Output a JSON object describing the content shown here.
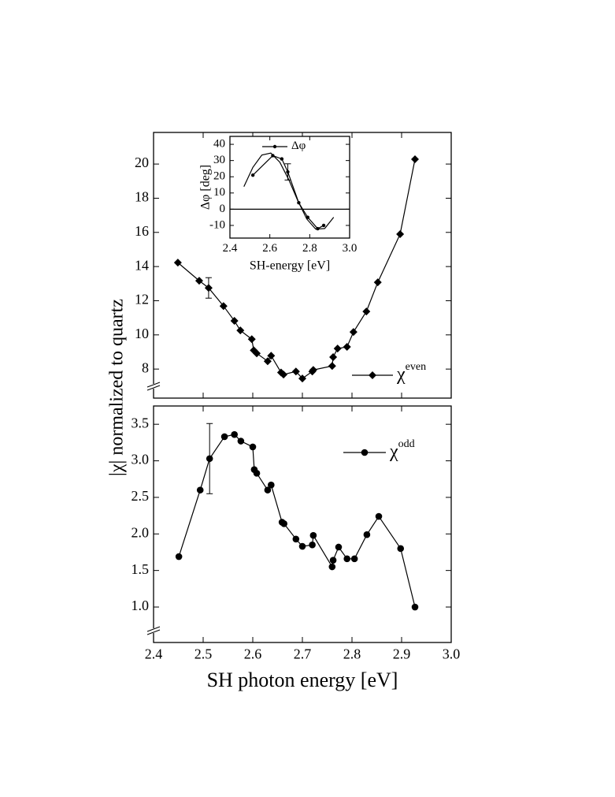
{
  "chart_data": [
    {
      "type": "line",
      "xlim": [
        2.4,
        3.0
      ],
      "ylim": [
        6.3,
        21.85
      ],
      "yticks": [
        8,
        10,
        12,
        14,
        16,
        18,
        20
      ],
      "legend": "lower right",
      "series": [
        {
          "name": "χ",
          "superscript": "even",
          "color": "#000",
          "marker": "diamond",
          "x": [
            2.449,
            2.492,
            2.511,
            2.541,
            2.563,
            2.575,
            2.598,
            2.602,
            2.608,
            2.63,
            2.637,
            2.657,
            2.662,
            2.687,
            2.7,
            2.72,
            2.722,
            2.76,
            2.762,
            2.771,
            2.79,
            2.803,
            2.829,
            2.852,
            2.897,
            2.927
          ],
          "values": [
            14.23,
            13.17,
            12.75,
            11.69,
            10.82,
            10.26,
            9.75,
            9.1,
            8.92,
            8.46,
            8.78,
            7.8,
            7.68,
            7.86,
            7.45,
            7.86,
            7.95,
            8.18,
            8.7,
            9.2,
            9.3,
            10.17,
            11.37,
            13.08,
            15.9,
            20.28
          ],
          "errors": [
            null,
            null,
            0.6,
            null,
            null,
            null,
            null,
            null,
            null,
            null,
            null,
            null,
            null,
            null,
            null,
            null,
            null,
            null,
            null,
            null,
            null,
            null,
            null,
            null,
            null,
            null
          ]
        }
      ]
    },
    {
      "type": "line",
      "xlabel": "SH photon energy [eV]",
      "ylabel": "|χ| normalized to quartz",
      "xlim": [
        2.4,
        3.0
      ],
      "xticks": [
        2.4,
        2.5,
        2.6,
        2.7,
        2.8,
        2.9,
        {
          "value": 3,
          "label": "3.0"
        }
      ],
      "ylim": [
        0.515,
        3.75
      ],
      "yticks": [
        {
          "value": 1,
          "label": "1.0"
        },
        1.5,
        {
          "value": 2,
          "label": "2.0"
        },
        2.5,
        {
          "value": 3,
          "label": "3.0"
        },
        3.5
      ],
      "legend": "upper right",
      "series": [
        {
          "name": "χ",
          "superscript": "odd",
          "color": "#000",
          "marker": "circle",
          "x": [
            2.451,
            2.494,
            2.513,
            2.543,
            2.563,
            2.576,
            2.6,
            2.603,
            2.608,
            2.63,
            2.637,
            2.659,
            2.663,
            2.687,
            2.7,
            2.72,
            2.722,
            2.76,
            2.762,
            2.773,
            2.79,
            2.805,
            2.83,
            2.854,
            2.898,
            2.927
          ],
          "values": [
            1.69,
            2.6,
            3.03,
            3.33,
            3.36,
            3.27,
            3.19,
            2.88,
            2.83,
            2.6,
            2.67,
            2.16,
            2.14,
            1.93,
            1.83,
            1.85,
            1.98,
            1.55,
            1.64,
            1.82,
            1.66,
            1.66,
            1.99,
            2.24,
            1.8,
            1.0
          ],
          "errors": [
            null,
            null,
            0.48,
            null,
            null,
            null,
            null,
            null,
            null,
            null,
            null,
            null,
            null,
            null,
            null,
            null,
            null,
            null,
            null,
            null,
            null,
            null,
            null,
            null,
            null,
            null
          ]
        }
      ]
    },
    {
      "type": "line",
      "xlabel": "SH-energy  [eV]",
      "ylabel": "Δφ [deg]",
      "xlim": [
        2.4,
        3.0
      ],
      "xticks": [
        2.4,
        2.6,
        2.8,
        {
          "value": 3,
          "label": "3.0"
        }
      ],
      "ylim": [
        -17.8,
        44.9
      ],
      "yticks": [
        -10,
        0,
        10,
        20,
        30,
        40
      ],
      "hline": 0,
      "legend": "upper right",
      "series": [
        {
          "name": "Δφ",
          "color": "#000",
          "marker": "dot",
          "x": [
            2.515,
            2.615,
            2.66,
            2.69,
            2.745,
            2.79,
            2.84,
            2.87
          ],
          "values": [
            21,
            33,
            31,
            23,
            4,
            -5,
            -12,
            -10
          ],
          "errors": [
            null,
            null,
            null,
            5,
            null,
            null,
            null,
            null
          ]
        },
        {
          "color": "#000",
          "x": [
            2.47,
            2.515,
            2.56,
            2.605,
            2.65,
            2.695,
            2.74,
            2.785,
            2.83,
            2.875,
            2.92
          ],
          "values": [
            13.9,
            25.8,
            33.4,
            34.6,
            29.0,
            18.2,
            5.3,
            -6.0,
            -12.3,
            -11.9,
            -5.0
          ]
        }
      ]
    }
  ]
}
